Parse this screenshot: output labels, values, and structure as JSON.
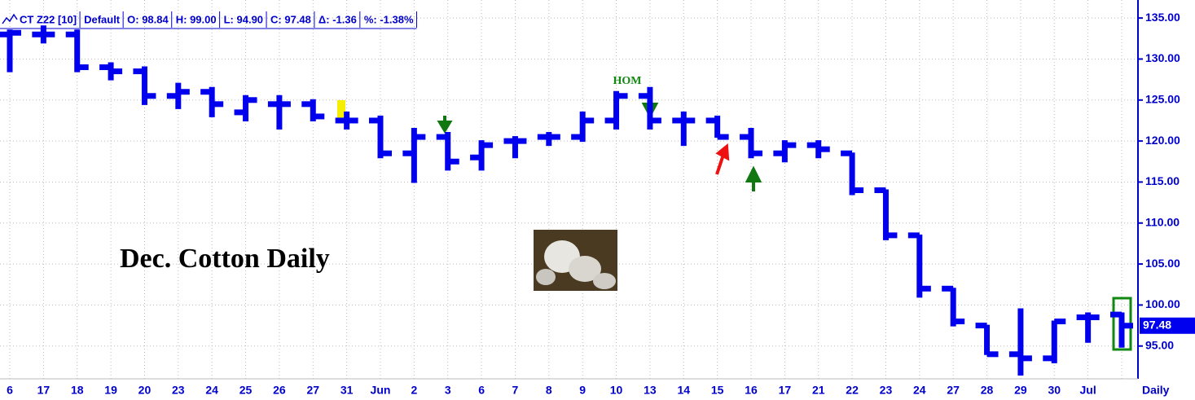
{
  "chart_data": {
    "type": "ohlc",
    "title": "Dec. Cotton Daily",
    "header": [
      "CT Z22 [10]",
      "Default",
      "O: 98.84",
      "H: 99.00",
      "L: 94.90",
      "C: 97.48",
      "Δ: -1.36",
      "%: -1.38%"
    ],
    "annotation": "HOM",
    "period_label": "Daily",
    "color": "#0000ee",
    "grid": true,
    "categories": [
      "6",
      "17",
      "18",
      "19",
      "20",
      "23",
      "24",
      "25",
      "26",
      "27",
      "31",
      "Jun",
      "2",
      "3",
      "6",
      "7",
      "8",
      "9",
      "10",
      "13",
      "14",
      "15",
      "16",
      "17",
      "21",
      "22",
      "23",
      "24",
      "27",
      "28",
      "29",
      "30",
      "Jul",
      null
    ],
    "series": [
      {
        "name": "open",
        "values": [
          133,
          133,
          133,
          129,
          128.5,
          125.5,
          126,
          123.5,
          124.5,
          124.5,
          122.5,
          122.5,
          118.5,
          120.5,
          118,
          120,
          120.5,
          120.5,
          122.5,
          125.5,
          122.5,
          122.5,
          120.5,
          118.5,
          119.5,
          118.5,
          114,
          108.5,
          102,
          97.5,
          94,
          93.5,
          98.5,
          98.84
        ]
      },
      {
        "name": "high",
        "values": [
          133.5,
          134,
          133.5,
          129.5,
          129,
          127,
          126.5,
          125.5,
          125.5,
          125,
          123.5,
          123,
          121.5,
          121,
          120,
          120.5,
          121,
          123.5,
          126,
          126.5,
          123.5,
          123,
          121.5,
          120,
          120,
          118.5,
          114,
          108.5,
          102,
          97.5,
          99.5,
          98,
          99,
          99.0
        ]
      },
      {
        "name": "low",
        "values": [
          128.5,
          132,
          128.5,
          127.5,
          124.5,
          124,
          123,
          122.5,
          121.5,
          122.5,
          121.5,
          118,
          115,
          116.5,
          116.5,
          118,
          119.5,
          120,
          121.5,
          121.5,
          119.5,
          120.5,
          118,
          117.5,
          118,
          113.5,
          108,
          101,
          97.5,
          94,
          91.5,
          93,
          95.5,
          94.9
        ]
      },
      {
        "name": "close",
        "values": [
          133.2,
          133,
          129,
          128.5,
          125.5,
          126,
          124.5,
          125,
          124.5,
          123,
          122.5,
          118.5,
          120.5,
          117.5,
          119.5,
          120,
          120.5,
          122.5,
          125.5,
          122.5,
          122.5,
          120.5,
          118.5,
          119.5,
          119,
          114,
          108.5,
          102,
          98,
          94,
          93.5,
          98,
          98.5,
          97.48
        ]
      }
    ],
    "ylim": [
      91,
      137.2
    ],
    "yticks": [
      {
        "value": 95,
        "label": "95.00"
      },
      {
        "value": 100,
        "label": "100.00"
      },
      {
        "value": 105,
        "label": "105.00"
      },
      {
        "value": 110,
        "label": "110.00"
      },
      {
        "value": 115,
        "label": "115.00"
      },
      {
        "value": 120,
        "label": "120.00"
      },
      {
        "value": 125,
        "label": "125.00"
      },
      {
        "value": 130,
        "label": "130.00"
      },
      {
        "value": 135,
        "label": "135.00"
      }
    ]
  }
}
